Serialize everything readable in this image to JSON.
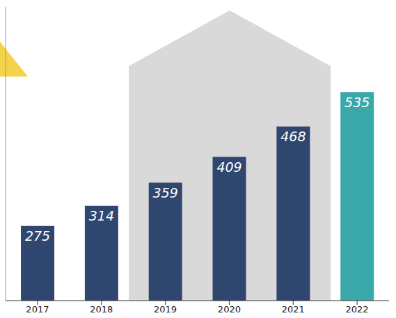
{
  "chart_data": {
    "type": "bar",
    "categories": [
      "2017",
      "2018",
      "2019",
      "2020",
      "2021",
      "2022"
    ],
    "values": [
      275,
      314,
      359,
      409,
      468,
      535
    ],
    "colors": [
      "#2f466f",
      "#2f466f",
      "#2f466f",
      "#2f466f",
      "#2f466f",
      "#3aa8a8"
    ],
    "ylim": [
      130,
      700
    ],
    "yticks": [],
    "grid": false,
    "data_labels": true,
    "tick_labels": "x"
  }
}
